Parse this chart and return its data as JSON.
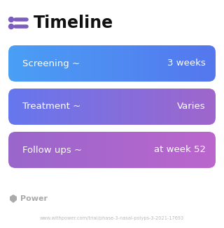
{
  "title": "Timeline",
  "title_fontsize": 17,
  "title_color": "#111111",
  "title_icon_color": "#7c5cbf",
  "background_color": "#ffffff",
  "rows": [
    {
      "label": "Screening ~",
      "value": "3 weeks",
      "color_left": "#4a9ff5",
      "color_right": "#5577ee"
    },
    {
      "label": "Treatment ~",
      "value": "Varies",
      "color_left": "#6677ee",
      "color_right": "#9f66cc"
    },
    {
      "label": "Follow ups ~",
      "value": "at week 52",
      "color_left": "#9966cc",
      "color_right": "#bb66cc"
    }
  ],
  "row_label_fontsize": 9.5,
  "row_value_fontsize": 9.5,
  "footer_logo_text": "Power",
  "footer_url": "www.withpower.com/trial/phase-3-nasal-polyps-3-2021-17693",
  "footer_fontsize": 4.8,
  "footer_color": "#bbbbbb",
  "footer_logo_color": "#aaaaaa"
}
